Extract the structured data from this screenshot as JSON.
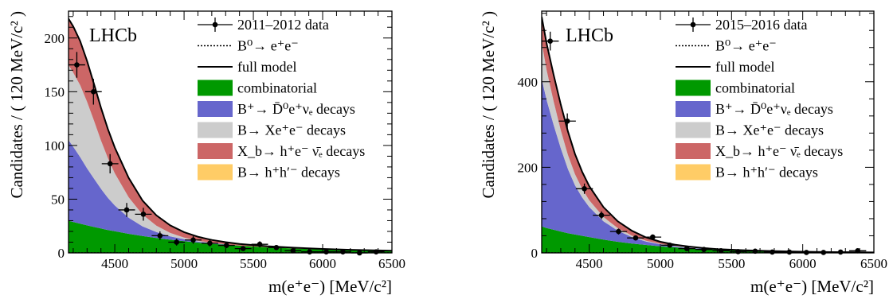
{
  "chart_data": [
    {
      "type": "area",
      "title": "",
      "experiment_label": "LHCb",
      "xlabel": "m(e⁺e⁻) [MeV/c²]",
      "ylabel": "Candidates / ( 120 MeV/c² )",
      "xlim": [
        4166,
        6500
      ],
      "ylim": [
        0,
        225
      ],
      "xticks": [
        4500,
        5000,
        5500,
        6000,
        6500
      ],
      "yticks": [
        0,
        50,
        100,
        150,
        200
      ],
      "legend_position": "top-right",
      "legend": [
        {
          "label": "2011–2012 data",
          "kind": "data"
        },
        {
          "label": "B⁰→ e⁺e⁻",
          "kind": "dotted"
        },
        {
          "label": "full model",
          "kind": "line"
        },
        {
          "label": "combinatorial",
          "kind": "fill",
          "color": "#009900"
        },
        {
          "label": "B⁺→ D̄⁰e⁺νₑ decays",
          "kind": "fill",
          "color": "#6666cc"
        },
        {
          "label": "B→ Xe⁺e⁻ decays",
          "kind": "fill",
          "color": "#cccccc"
        },
        {
          "label": "X_b→ h⁺e⁻ ν̄ₑ decays",
          "kind": "fill",
          "color": "#cc6666"
        },
        {
          "label": "B→ h⁺h′⁻ decays",
          "kind": "fill",
          "color": "#ffcc66"
        }
      ],
      "x": [
        4166,
        4200,
        4250,
        4300,
        4350,
        4400,
        4450,
        4500,
        4600,
        4700,
        4800,
        4900,
        5000,
        5100,
        5200,
        5300,
        5400,
        5600,
        5800,
        6000,
        6200,
        6500
      ],
      "series": [
        {
          "name": "combinatorial",
          "color": "#009900",
          "values": [
            30,
            28.8,
            27.2,
            25.6,
            24.1,
            22.7,
            21.3,
            20.1,
            17.8,
            15.7,
            13.9,
            12.3,
            10.9,
            9.6,
            8.5,
            7.6,
            6.7,
            5.2,
            4.1,
            3.2,
            2.5,
            1.7
          ]
        },
        {
          "name": "B⁺→ D̄⁰e⁺νₑ decays",
          "color": "#6666cc",
          "values": [
            75,
            70,
            62,
            53,
            45,
            37,
            30,
            24,
            15,
            9,
            5.5,
            3,
            1.8,
            1,
            0.5,
            0.3,
            0.1,
            0,
            0,
            0,
            0,
            0
          ]
        },
        {
          "name": "B→ Xe⁺e⁻ decays",
          "color": "#cccccc",
          "values": [
            70,
            69,
            67,
            62,
            54,
            45,
            37,
            30,
            19,
            11,
            6,
            3.3,
            1.6,
            0.7,
            0.3,
            0.1,
            0,
            0,
            0,
            0,
            0,
            0
          ]
        },
        {
          "name": "X_b→ h⁺e⁻ ν̄ₑ decays",
          "color": "#cc6666",
          "values": [
            43,
            43,
            41,
            38,
            34,
            30.5,
            27,
            24,
            18,
            13,
            9.5,
            7,
            5,
            3.7,
            2.8,
            2,
            1.6,
            1,
            0.7,
            0.5,
            0.4,
            0.3
          ]
        },
        {
          "name": "B→ h⁺h′⁻ decays",
          "color": "#ffcc66",
          "values": [
            0,
            0,
            0,
            0,
            0,
            0,
            0,
            0,
            0,
            0,
            0,
            0,
            0,
            0,
            0,
            0,
            0,
            0,
            0,
            0,
            0,
            0
          ]
        }
      ],
      "data_points": [
        {
          "x": 4226,
          "y": 175,
          "err": 12
        },
        {
          "x": 4346,
          "y": 150,
          "err": 12
        },
        {
          "x": 4466,
          "y": 83,
          "err": 9
        },
        {
          "x": 4586,
          "y": 40,
          "err": 6.5
        },
        {
          "x": 4706,
          "y": 36,
          "err": 6
        },
        {
          "x": 4826,
          "y": 16,
          "err": 4
        },
        {
          "x": 4946,
          "y": 10,
          "err": 3.2
        },
        {
          "x": 5066,
          "y": 12,
          "err": 3.5
        },
        {
          "x": 5186,
          "y": 9,
          "err": 3
        },
        {
          "x": 5306,
          "y": 7,
          "err": 2.6
        },
        {
          "x": 5426,
          "y": 4,
          "err": 2
        },
        {
          "x": 5546,
          "y": 8,
          "err": 2.8
        },
        {
          "x": 5666,
          "y": 5,
          "err": 2.2
        },
        {
          "x": 5786,
          "y": 2,
          "err": 1.4
        },
        {
          "x": 5906,
          "y": 1,
          "err": 1
        },
        {
          "x": 6026,
          "y": 1,
          "err": 1
        },
        {
          "x": 6146,
          "y": 1,
          "err": 1
        },
        {
          "x": 6266,
          "y": 0,
          "err": 1
        },
        {
          "x": 6386,
          "y": 1,
          "err": 1
        }
      ]
    },
    {
      "type": "area",
      "title": "",
      "experiment_label": "LHCb",
      "xlabel": "m(e⁺e⁻) [MeV/c²]",
      "ylabel": "Candidates / ( 120 MeV/c² )",
      "xlim": [
        4166,
        6500
      ],
      "ylim": [
        0,
        565
      ],
      "xticks": [
        4500,
        5000,
        5500,
        6000,
        6500
      ],
      "yticks": [
        0,
        200,
        400
      ],
      "legend_position": "top-right",
      "legend": [
        {
          "label": "2015–2016 data",
          "kind": "data"
        },
        {
          "label": "B⁰→ e⁺e⁻",
          "kind": "dotted"
        },
        {
          "label": "full model",
          "kind": "line"
        },
        {
          "label": "combinatorial",
          "kind": "fill",
          "color": "#009900"
        },
        {
          "label": "B⁺→ D̄⁰e⁺νₑ decays",
          "kind": "fill",
          "color": "#6666cc"
        },
        {
          "label": "B→ Xe⁺e⁻ decays",
          "kind": "fill",
          "color": "#cccccc"
        },
        {
          "label": "X_b→ h⁺e⁻ ν̄ₑ decays",
          "kind": "fill",
          "color": "#cc6666"
        },
        {
          "label": "B→ h⁺h′⁻ decays",
          "kind": "fill",
          "color": "#ffcc66"
        }
      ],
      "x": [
        4166,
        4200,
        4250,
        4300,
        4350,
        4400,
        4450,
        4500,
        4600,
        4700,
        4800,
        4900,
        5000,
        5100,
        5200,
        5300,
        5400,
        5600,
        5800,
        6000,
        6200,
        6500
      ],
      "series": [
        {
          "name": "combinatorial",
          "color": "#009900",
          "values": [
            62,
            58,
            54,
            50,
            46,
            43,
            40,
            37,
            31,
            26,
            22,
            18.5,
            15.5,
            13,
            11,
            9,
            7.5,
            5.3,
            3.7,
            2.6,
            1.8,
            1
          ]
        },
        {
          "name": "B⁺→ D̄⁰e⁺νₑ decays",
          "color": "#6666cc",
          "values": [
            345,
            300,
            245,
            195,
            150,
            115,
            90,
            70,
            43,
            26,
            15,
            8,
            4.5,
            2.5,
            1.3,
            0.7,
            0.3,
            0,
            0,
            0,
            0,
            0
          ]
        },
        {
          "name": "B→ Xe⁺e⁻ decays",
          "color": "#cccccc",
          "values": [
            85,
            70,
            55,
            42,
            33,
            26,
            20,
            16,
            10,
            6,
            3.6,
            2,
            1.1,
            0.6,
            0.3,
            0.1,
            0,
            0,
            0,
            0,
            0,
            0
          ]
        },
        {
          "name": "X_b→ h⁺e⁻ ν̄ₑ decays",
          "color": "#cc6666",
          "values": [
            60,
            62,
            62,
            60,
            55,
            47,
            40,
            33,
            23,
            16,
            11,
            7.5,
            5,
            3.3,
            2.2,
            1.6,
            1.1,
            0.6,
            0.3,
            0.2,
            0.1,
            0.1
          ]
        },
        {
          "name": "B→ h⁺h′⁻ decays",
          "color": "#ffcc66",
          "values": [
            0,
            0,
            0,
            0,
            0,
            0,
            0,
            0,
            0,
            0,
            0,
            0,
            0,
            0,
            0,
            0,
            0,
            0,
            0,
            0,
            0,
            0
          ]
        }
      ],
      "data_points": [
        {
          "x": 4226,
          "y": 495,
          "err": 22
        },
        {
          "x": 4346,
          "y": 308,
          "err": 18
        },
        {
          "x": 4466,
          "y": 150,
          "err": 12
        },
        {
          "x": 4586,
          "y": 88,
          "err": 9
        },
        {
          "x": 4706,
          "y": 50,
          "err": 7
        },
        {
          "x": 4826,
          "y": 35,
          "err": 6
        },
        {
          "x": 4946,
          "y": 37,
          "err": 6
        },
        {
          "x": 5066,
          "y": 18,
          "err": 4.2
        },
        {
          "x": 5186,
          "y": 10,
          "err": 3.2
        },
        {
          "x": 5306,
          "y": 8,
          "err": 2.8
        },
        {
          "x": 5426,
          "y": 5,
          "err": 2.2
        },
        {
          "x": 5546,
          "y": 3,
          "err": 1.7
        },
        {
          "x": 5666,
          "y": 4,
          "err": 2
        },
        {
          "x": 5786,
          "y": 2,
          "err": 1.4
        },
        {
          "x": 5906,
          "y": 2,
          "err": 1.4
        },
        {
          "x": 6026,
          "y": 1,
          "err": 1
        },
        {
          "x": 6146,
          "y": 1,
          "err": 1
        },
        {
          "x": 6266,
          "y": 2,
          "err": 1.4
        },
        {
          "x": 6386,
          "y": 5,
          "err": 2.2
        }
      ]
    }
  ]
}
